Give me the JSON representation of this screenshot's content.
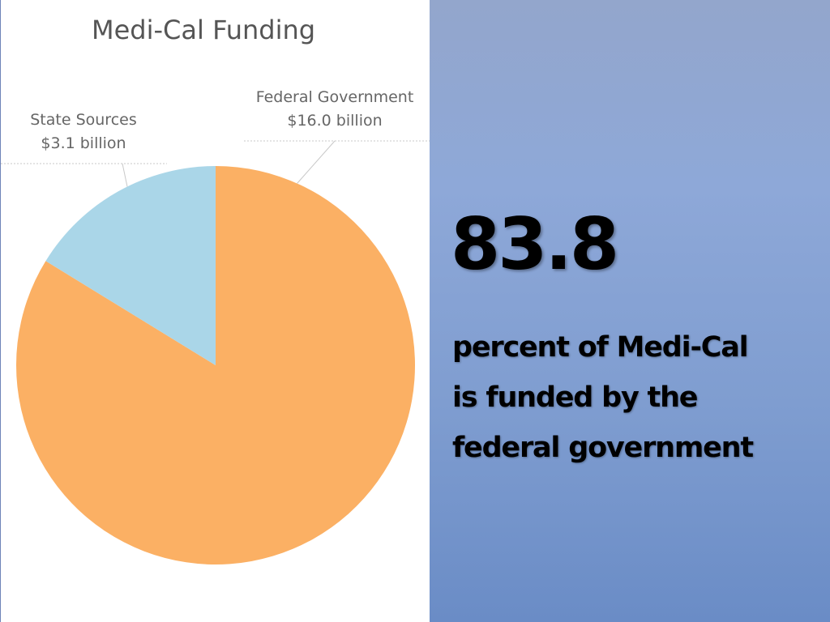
{
  "chart_data": {
    "type": "pie",
    "title": "Medi-Cal Funding",
    "slices": [
      {
        "label": "Federal Government",
        "value_label": "$16.0 billion",
        "value": 16.0,
        "color": "#fbb064"
      },
      {
        "label": "State Sources",
        "value_label": "$3.1 billion",
        "value": 3.1,
        "color": "#aad6e8"
      }
    ]
  },
  "stat": {
    "number": "83.8",
    "lines": [
      "percent of Medi-Cal",
      "is funded by the",
      "federal government"
    ]
  },
  "colors": {
    "title": "#555555",
    "label": "#666666",
    "leader": "#c8c8c8"
  }
}
